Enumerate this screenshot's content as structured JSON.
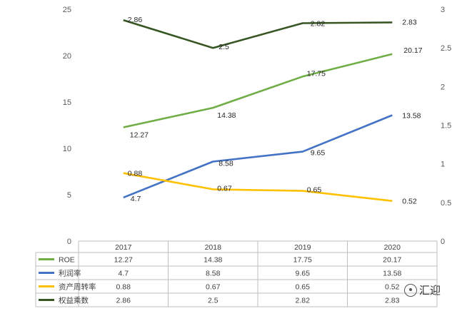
{
  "chart_data": {
    "type": "line",
    "categories": [
      "2017",
      "2018",
      "2019",
      "2020"
    ],
    "left_axis": {
      "ylim": [
        0,
        25
      ],
      "ticks": [
        "0",
        "5",
        "10",
        "15",
        "20",
        "25"
      ]
    },
    "right_axis": {
      "ylim": [
        0,
        3
      ],
      "ticks": [
        "0",
        "0.5",
        "1",
        "1.5",
        "2",
        "2.5",
        "3"
      ]
    },
    "series": [
      {
        "name": "ROE",
        "axis": "left",
        "color": "#70AD47",
        "values": [
          12.27,
          14.38,
          17.75,
          20.17
        ],
        "labels": [
          "12.27",
          "14.38",
          "17.75",
          "20.17"
        ]
      },
      {
        "name": "利润率",
        "axis": "left",
        "color": "#4472C4",
        "values": [
          4.7,
          8.58,
          9.65,
          13.58
        ],
        "labels": [
          "4.7",
          "8.58",
          "9.65",
          "13.58"
        ]
      },
      {
        "name": "资产周转率",
        "axis": "right",
        "color": "#FFC000",
        "values": [
          0.88,
          0.67,
          0.65,
          0.52
        ],
        "labels": [
          "0.88",
          "0.67",
          "0.65",
          "0.52"
        ]
      },
      {
        "name": "权益乘数",
        "axis": "right",
        "color": "#375623",
        "values": [
          2.86,
          2.5,
          2.82,
          2.83
        ],
        "labels": [
          "2.86",
          "2.5",
          "2.82",
          "2.83"
        ]
      }
    ],
    "legend": "table-bottom",
    "grid": false
  },
  "watermark": {
    "text": "汇迎",
    "icon": "wechat-icon"
  }
}
